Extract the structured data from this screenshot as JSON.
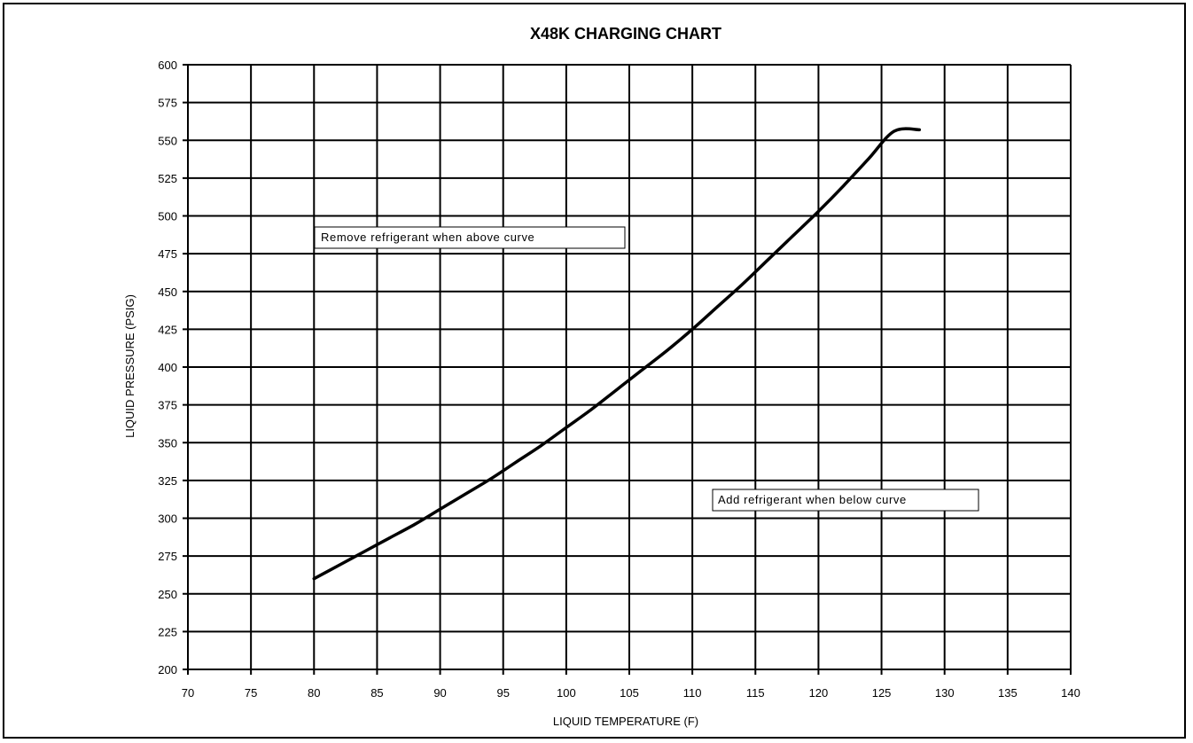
{
  "chart_data": {
    "type": "line",
    "title": "X48K CHARGING CHART",
    "xlabel": "LIQUID TEMPERATURE (F)",
    "ylabel": "LIQUID PRESSURE (PSIG)",
    "xlim": [
      70,
      140
    ],
    "ylim": [
      200,
      600
    ],
    "xticks": [
      "70",
      "75",
      "80",
      "85",
      "90",
      "95",
      "100",
      "105",
      "110",
      "115",
      "120",
      "125",
      "130",
      "135",
      "140"
    ],
    "yticks": [
      "200",
      "225",
      "250",
      "275",
      "300",
      "325",
      "350",
      "375",
      "400",
      "425",
      "450",
      "475",
      "500",
      "525",
      "550",
      "575",
      "600"
    ],
    "grid": true,
    "legend": "none",
    "series": [
      {
        "x": [
          80,
          82,
          84,
          86,
          88,
          90,
          92,
          94,
          96,
          98,
          100,
          102,
          104,
          106,
          108,
          110,
          112,
          114,
          116,
          118,
          120,
          122,
          124,
          126,
          128
        ],
        "y": [
          260,
          269,
          278,
          287,
          296,
          306,
          316,
          326,
          337,
          348,
          360,
          372,
          385,
          398,
          411,
          425,
          440,
          455,
          471,
          487,
          503,
          520,
          538,
          556,
          557
        ]
      }
    ],
    "annotations": [
      {
        "text": "Remove refrigerant when above curve"
      },
      {
        "text": "Add refrigerant when below curve"
      }
    ],
    "colors": {
      "line": "#000000",
      "grid": "#000000",
      "background": "#ffffff"
    }
  }
}
